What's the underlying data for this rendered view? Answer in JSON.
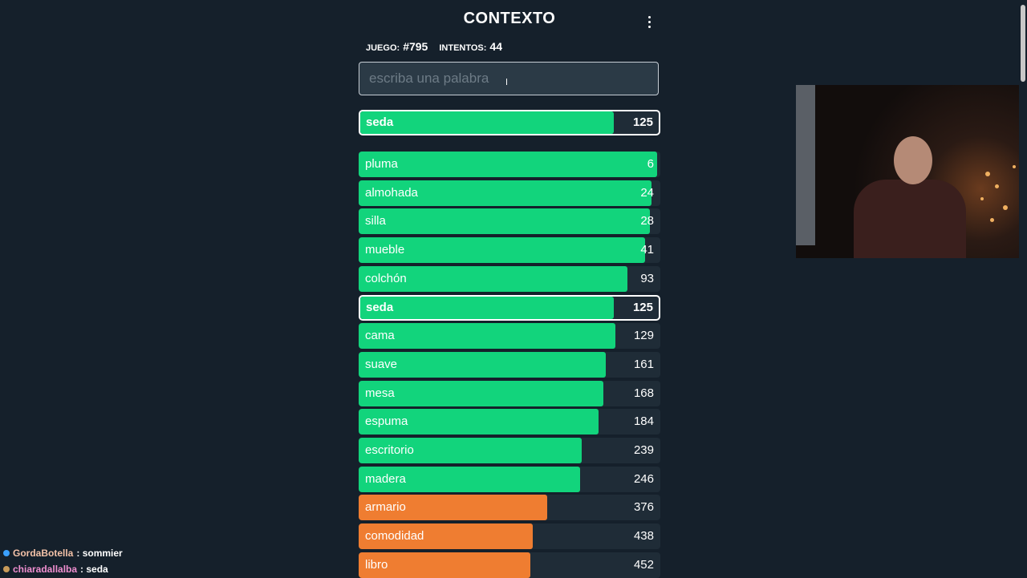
{
  "header": {
    "title": "CONTEXTO",
    "game_label": "JUEGO:",
    "game_number": "#795",
    "attempts_label": "INTENTOS:",
    "attempts_value": "44"
  },
  "search": {
    "placeholder": "escriba una palabra",
    "value": ""
  },
  "last_guess": {
    "word": "seda",
    "rank": "125",
    "fill": 0.85,
    "color": "#12d47c"
  },
  "guesses": [
    {
      "word": "pluma",
      "rank": "6",
      "fill": 0.99,
      "color": "#12d47c",
      "current": false
    },
    {
      "word": "almohada",
      "rank": "24",
      "fill": 0.97,
      "color": "#12d47c",
      "current": false
    },
    {
      "word": "silla",
      "rank": "28",
      "fill": 0.965,
      "color": "#12d47c",
      "current": false
    },
    {
      "word": "mueble",
      "rank": "41",
      "fill": 0.95,
      "color": "#12d47c",
      "current": false
    },
    {
      "word": "colchón",
      "rank": "93",
      "fill": 0.89,
      "color": "#12d47c",
      "current": false
    },
    {
      "word": "seda",
      "rank": "125",
      "fill": 0.85,
      "color": "#12d47c",
      "current": true
    },
    {
      "word": "cama",
      "rank": "129",
      "fill": 0.85,
      "color": "#12d47c",
      "current": false
    },
    {
      "word": "suave",
      "rank": "161",
      "fill": 0.82,
      "color": "#12d47c",
      "current": false
    },
    {
      "word": "mesa",
      "rank": "168",
      "fill": 0.81,
      "color": "#12d47c",
      "current": false
    },
    {
      "word": "espuma",
      "rank": "184",
      "fill": 0.795,
      "color": "#12d47c",
      "current": false
    },
    {
      "word": "escritorio",
      "rank": "239",
      "fill": 0.74,
      "color": "#12d47c",
      "current": false
    },
    {
      "word": "madera",
      "rank": "246",
      "fill": 0.735,
      "color": "#12d47c",
      "current": false
    },
    {
      "word": "armario",
      "rank": "376",
      "fill": 0.625,
      "color": "#ef7d31",
      "current": false
    },
    {
      "word": "comodidad",
      "rank": "438",
      "fill": 0.578,
      "color": "#ef7d31",
      "current": false
    },
    {
      "word": "libro",
      "rank": "452",
      "fill": 0.57,
      "color": "#ef7d31",
      "current": false
    }
  ],
  "chat": [
    {
      "user": "GordaBotella",
      "user_color": "#f4c2a8",
      "message": ": sommier",
      "badge_color": "#3aa0ff"
    },
    {
      "user": "chiaradallalba",
      "user_color": "#f08fd0",
      "message": ": seda",
      "badge_color": "#c89b5a"
    }
  ]
}
